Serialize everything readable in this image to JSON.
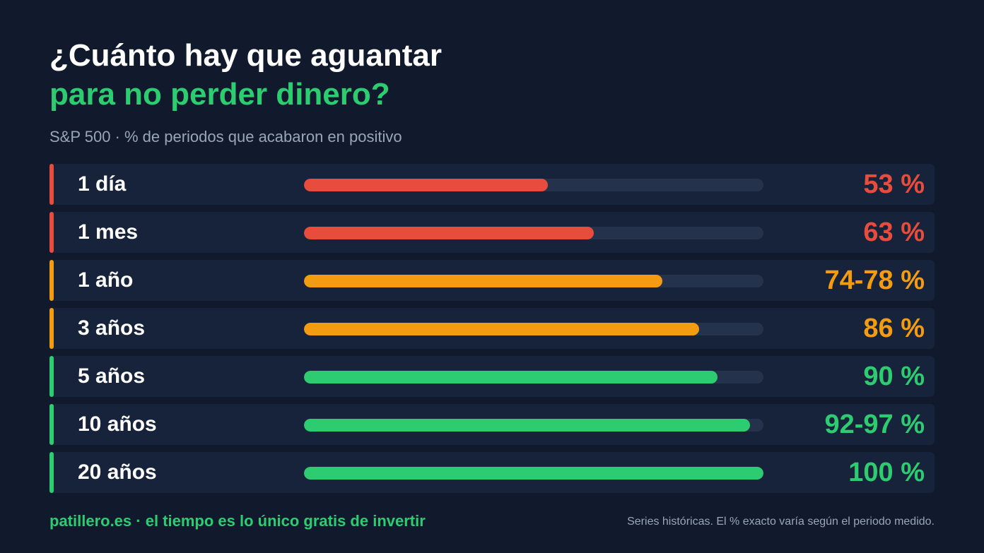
{
  "colors": {
    "background": "#111a2d",
    "row_background": "#17233a",
    "track": "#24324c",
    "red": "#e74c3c",
    "orange": "#f39c12",
    "green": "#2ecc71",
    "muted_text": "#9aa6b8"
  },
  "chart_data": {
    "type": "bar",
    "orientation": "horizontal",
    "title": "¿Cuánto hay que aguantar para no perder dinero?",
    "title_line1": "¿Cuánto hay que aguantar",
    "title_line2": "para no perder dinero?",
    "subtitle": "S&P 500 · % de periodos que acabaron en positivo",
    "xlim": [
      0,
      100
    ],
    "grid": false,
    "categories": [
      "1 día",
      "1 mes",
      "1 año",
      "3 años",
      "5 años",
      "10 años",
      "20 años"
    ],
    "values": [
      53,
      63,
      78,
      86,
      90,
      97,
      100
    ],
    "value_labels": [
      "53 %",
      "63 %",
      "74-78 %",
      "86 %",
      "90 %",
      "92-97 %",
      "100 %"
    ],
    "bar_colors": [
      "#e74c3c",
      "#e74c3c",
      "#f39c12",
      "#f39c12",
      "#2ecc71",
      "#2ecc71",
      "#2ecc71"
    ]
  },
  "footer": {
    "brand": "patillero.es · el tiempo es lo único gratis de invertir",
    "note": "Series históricas. El % exacto varía según el periodo medido."
  }
}
